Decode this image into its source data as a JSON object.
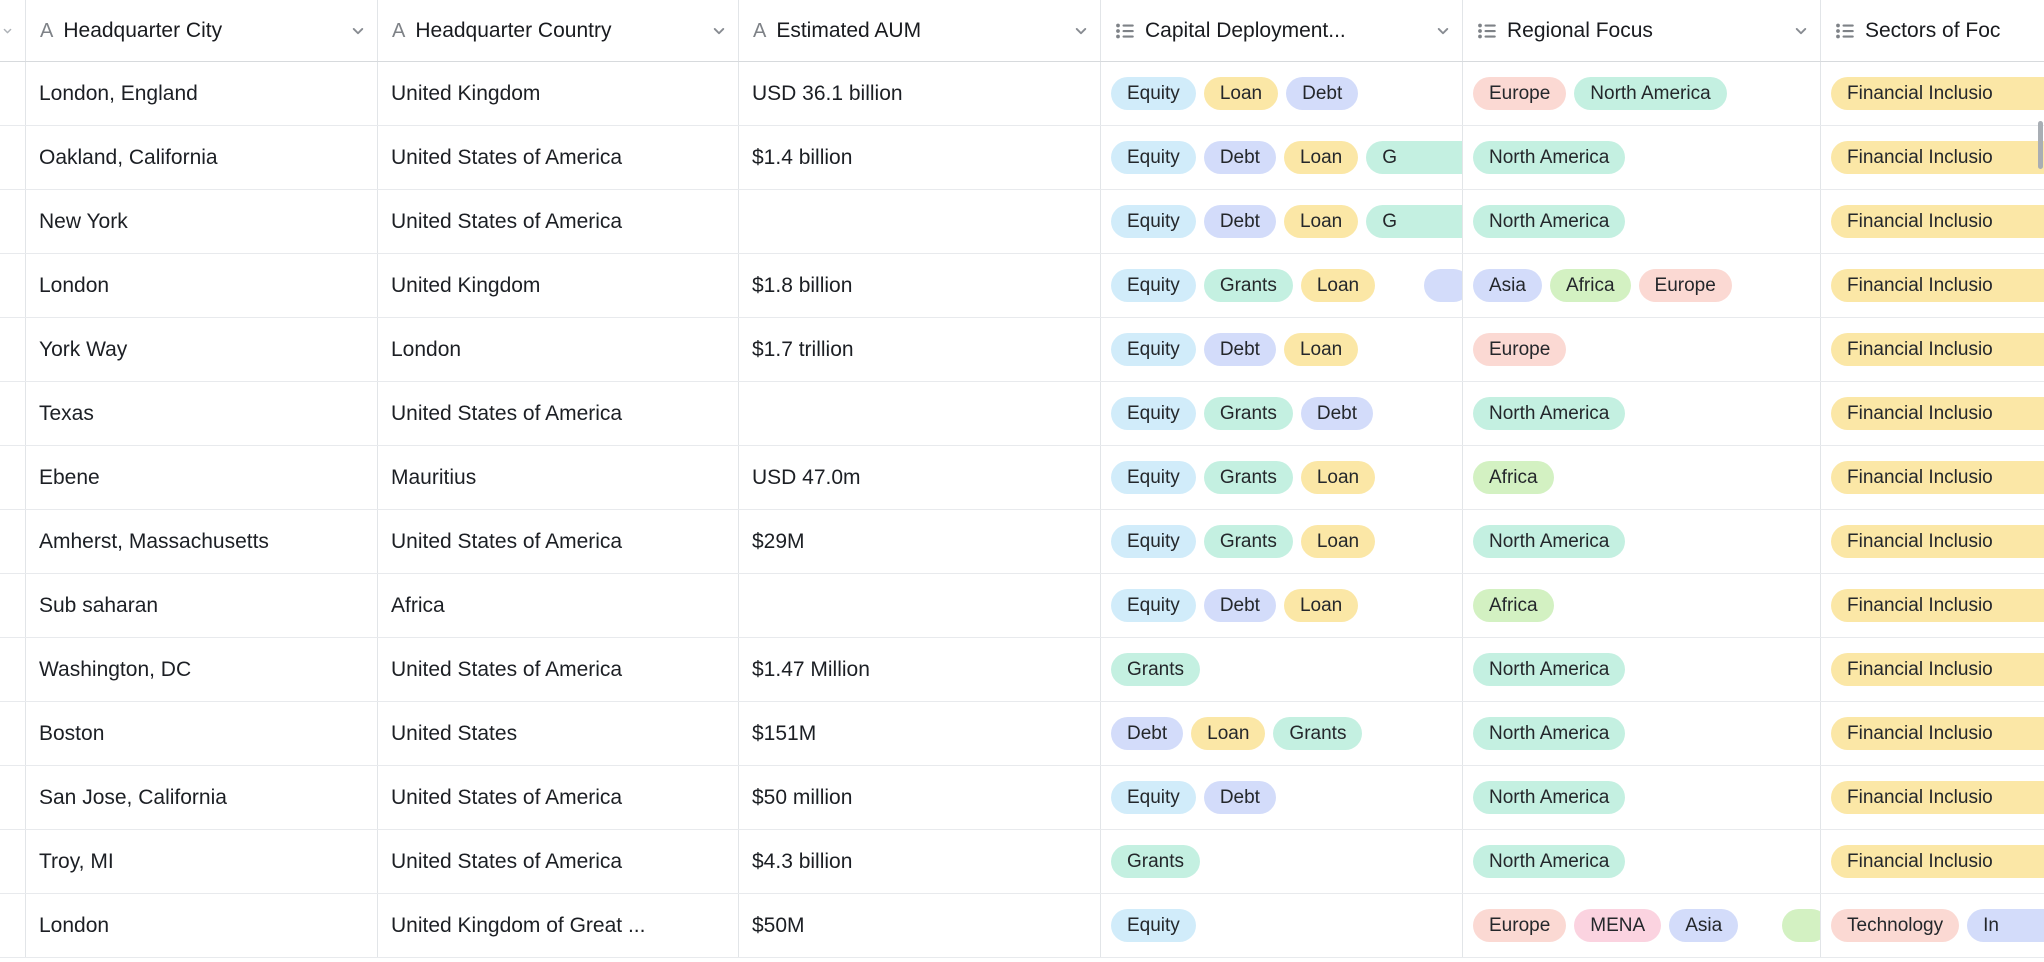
{
  "icons": {
    "text_field_icon": "A",
    "multi_select_icon": "list-bullets",
    "header_menu_icon": "chevron-down"
  },
  "table": {
    "columns": [
      {
        "label": "Headquarter City",
        "type": "text",
        "key": "city"
      },
      {
        "label": "Headquarter Country",
        "type": "text",
        "key": "country"
      },
      {
        "label": "Estimated AUM",
        "type": "text",
        "key": "aum"
      },
      {
        "label": "Capital Deployment...",
        "type": "multiselect",
        "key": "capital"
      },
      {
        "label": "Regional Focus",
        "type": "multiselect",
        "key": "regions"
      },
      {
        "label": "Sectors of Foc",
        "type": "multiselect",
        "key": "sectors"
      }
    ],
    "colors": {
      "cyan": "#d1ecfa",
      "teal": "#c4f0e1",
      "yellow": "#fbe7a6",
      "blue": "#d3dcfa",
      "green": "#d3f1c2",
      "salmon": "#fbd9d3",
      "pink": "#fbd3e0"
    },
    "rows": [
      {
        "city": "London, England",
        "country": "United Kingdom",
        "aum": "USD 36.1 billion",
        "capital": [
          {
            "t": "Equity",
            "c": "cyan"
          },
          {
            "t": "Loan",
            "c": "yellow"
          },
          {
            "t": "Debt",
            "c": "blue"
          }
        ],
        "regions": [
          {
            "t": "Europe",
            "c": "salmon"
          },
          {
            "t": "North America",
            "c": "teal"
          }
        ],
        "sectors": [
          {
            "t": "Financial Inclusio",
            "c": "yellow",
            "cut": true
          }
        ]
      },
      {
        "city": "Oakland, California",
        "country": "United States of America",
        "aum": "$1.4 billion",
        "capital": [
          {
            "t": "Equity",
            "c": "cyan"
          },
          {
            "t": "Debt",
            "c": "blue"
          },
          {
            "t": "Loan",
            "c": "yellow"
          },
          {
            "t": "G",
            "c": "teal",
            "cut": true
          }
        ],
        "regions": [
          {
            "t": "North America",
            "c": "teal"
          }
        ],
        "sectors": [
          {
            "t": "Financial Inclusio",
            "c": "yellow",
            "cut": true
          }
        ]
      },
      {
        "city": "New York",
        "country": "United States of America",
        "aum": "",
        "capital": [
          {
            "t": "Equity",
            "c": "cyan"
          },
          {
            "t": "Debt",
            "c": "blue"
          },
          {
            "t": "Loan",
            "c": "yellow"
          },
          {
            "t": "G",
            "c": "teal",
            "cut": true
          }
        ],
        "regions": [
          {
            "t": "North America",
            "c": "teal"
          }
        ],
        "sectors": [
          {
            "t": "Financial Inclusio",
            "c": "yellow",
            "cut": true
          }
        ]
      },
      {
        "city": "London",
        "country": "United Kingdom",
        "aum": "$1.8 billion",
        "capital": [
          {
            "t": "Equity",
            "c": "cyan"
          },
          {
            "t": "Grants",
            "c": "teal"
          },
          {
            "t": "Loan",
            "c": "yellow"
          },
          {
            "t": "",
            "c": "blue",
            "sliver": true
          }
        ],
        "regions": [
          {
            "t": "Asia",
            "c": "blue"
          },
          {
            "t": "Africa",
            "c": "green"
          },
          {
            "t": "Europe",
            "c": "salmon"
          }
        ],
        "sectors": [
          {
            "t": "Financial Inclusio",
            "c": "yellow",
            "cut": true
          }
        ]
      },
      {
        "city": "York Way",
        "country": "London",
        "aum": "$1.7 trillion",
        "capital": [
          {
            "t": "Equity",
            "c": "cyan"
          },
          {
            "t": "Debt",
            "c": "blue"
          },
          {
            "t": "Loan",
            "c": "yellow"
          }
        ],
        "regions": [
          {
            "t": "Europe",
            "c": "salmon"
          }
        ],
        "sectors": [
          {
            "t": "Financial Inclusio",
            "c": "yellow",
            "cut": true
          }
        ]
      },
      {
        "city": "Texas",
        "country": "United States of America",
        "aum": "",
        "capital": [
          {
            "t": "Equity",
            "c": "cyan"
          },
          {
            "t": "Grants",
            "c": "teal"
          },
          {
            "t": "Debt",
            "c": "blue"
          }
        ],
        "regions": [
          {
            "t": "North America",
            "c": "teal"
          }
        ],
        "sectors": [
          {
            "t": "Financial Inclusio",
            "c": "yellow",
            "cut": true
          }
        ]
      },
      {
        "city": "Ebene",
        "country": "Mauritius",
        "aum": "USD 47.0m",
        "capital": [
          {
            "t": "Equity",
            "c": "cyan"
          },
          {
            "t": "Grants",
            "c": "teal"
          },
          {
            "t": "Loan",
            "c": "yellow"
          }
        ],
        "regions": [
          {
            "t": "Africa",
            "c": "green"
          }
        ],
        "sectors": [
          {
            "t": "Financial Inclusio",
            "c": "yellow",
            "cut": true
          }
        ]
      },
      {
        "city": "Amherst, Massachusetts",
        "country": "United States of America",
        "aum": "$29M",
        "capital": [
          {
            "t": "Equity",
            "c": "cyan"
          },
          {
            "t": "Grants",
            "c": "teal"
          },
          {
            "t": "Loan",
            "c": "yellow"
          }
        ],
        "regions": [
          {
            "t": "North America",
            "c": "teal"
          }
        ],
        "sectors": [
          {
            "t": "Financial Inclusio",
            "c": "yellow",
            "cut": true
          }
        ]
      },
      {
        "city": "Sub saharan",
        "country": "Africa",
        "aum": "",
        "capital": [
          {
            "t": "Equity",
            "c": "cyan"
          },
          {
            "t": "Debt",
            "c": "blue"
          },
          {
            "t": "Loan",
            "c": "yellow"
          }
        ],
        "regions": [
          {
            "t": "Africa",
            "c": "green"
          }
        ],
        "sectors": [
          {
            "t": "Financial Inclusio",
            "c": "yellow",
            "cut": true
          }
        ]
      },
      {
        "city": "Washington, DC",
        "country": "United States of America",
        "aum": "$1.47 Million",
        "capital": [
          {
            "t": "Grants",
            "c": "teal"
          }
        ],
        "regions": [
          {
            "t": "North America",
            "c": "teal"
          }
        ],
        "sectors": [
          {
            "t": "Financial Inclusio",
            "c": "yellow",
            "cut": true
          }
        ]
      },
      {
        "city": "Boston",
        "country": "United States",
        "aum": "$151M",
        "capital": [
          {
            "t": "Debt",
            "c": "blue"
          },
          {
            "t": "Loan",
            "c": "yellow"
          },
          {
            "t": "Grants",
            "c": "teal"
          }
        ],
        "regions": [
          {
            "t": "North America",
            "c": "teal"
          }
        ],
        "sectors": [
          {
            "t": "Financial Inclusio",
            "c": "yellow",
            "cut": true
          }
        ]
      },
      {
        "city": "San Jose, California",
        "country": "United States of America",
        "aum": "$50 million",
        "capital": [
          {
            "t": "Equity",
            "c": "cyan"
          },
          {
            "t": "Debt",
            "c": "blue"
          }
        ],
        "regions": [
          {
            "t": "North America",
            "c": "teal"
          }
        ],
        "sectors": [
          {
            "t": "Financial Inclusio",
            "c": "yellow",
            "cut": true
          }
        ]
      },
      {
        "city": "Troy, MI",
        "country": "United States of America",
        "aum": "$4.3 billion",
        "capital": [
          {
            "t": "Grants",
            "c": "teal"
          }
        ],
        "regions": [
          {
            "t": "North America",
            "c": "teal"
          }
        ],
        "sectors": [
          {
            "t": "Financial Inclusio",
            "c": "yellow",
            "cut": true
          }
        ]
      },
      {
        "city": "London",
        "country": "United Kingdom of Great ...",
        "aum": "$50M",
        "capital": [
          {
            "t": "Equity",
            "c": "cyan"
          }
        ],
        "regions": [
          {
            "t": "Europe",
            "c": "salmon"
          },
          {
            "t": "MENA",
            "c": "pink"
          },
          {
            "t": "Asia",
            "c": "blue"
          },
          {
            "t": "",
            "c": "green",
            "sliver": true
          }
        ],
        "sectors": [
          {
            "t": "Technology",
            "c": "salmon"
          },
          {
            "t": "In",
            "c": "blue",
            "cut": true
          }
        ]
      }
    ]
  }
}
